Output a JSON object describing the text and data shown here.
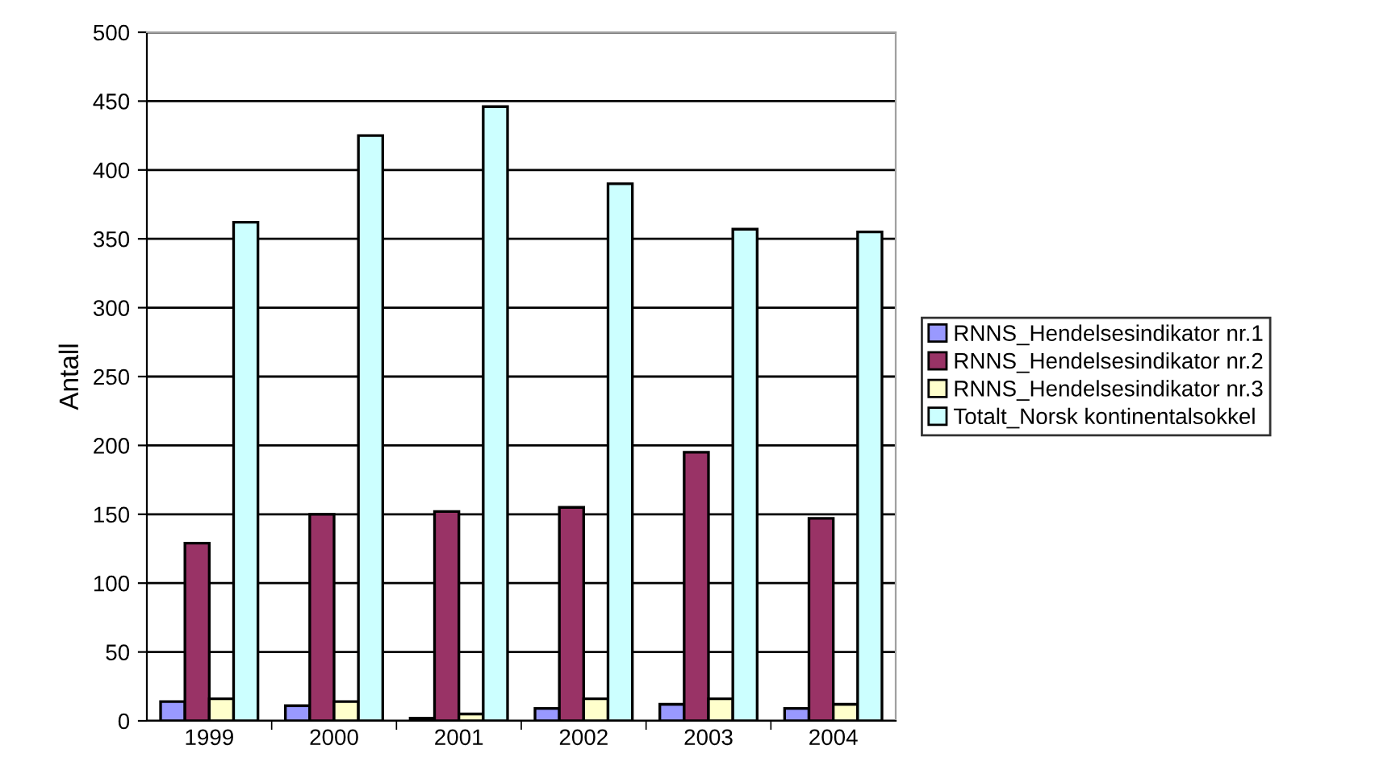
{
  "chart_data": {
    "type": "bar",
    "ylabel": "Antall",
    "categories": [
      "1999",
      "2000",
      "2001",
      "2002",
      "2003",
      "2004"
    ],
    "series": [
      {
        "name": "RNNS_Hendelsesindikator nr.1",
        "color": "#9999ff",
        "values": [
          14,
          11,
          2,
          9,
          12,
          9
        ]
      },
      {
        "name": "RNNS_Hendelsesindikator nr.2",
        "color": "#993366",
        "values": [
          129,
          150,
          152,
          155,
          195,
          147
        ]
      },
      {
        "name": "RNNS_Hendelsesindikator nr.3",
        "color": "#ffffcc",
        "values": [
          16,
          14,
          5,
          16,
          16,
          12
        ]
      },
      {
        "name": "Totalt_Norsk kontinentalsokkel",
        "color": "#ccffff",
        "values": [
          362,
          425,
          446,
          390,
          357,
          355
        ]
      }
    ],
    "ylim": [
      0,
      500
    ],
    "yticks": [
      0,
      50,
      100,
      150,
      200,
      250,
      300,
      350,
      400,
      450,
      500
    ],
    "grid": "y",
    "legend": "right"
  }
}
